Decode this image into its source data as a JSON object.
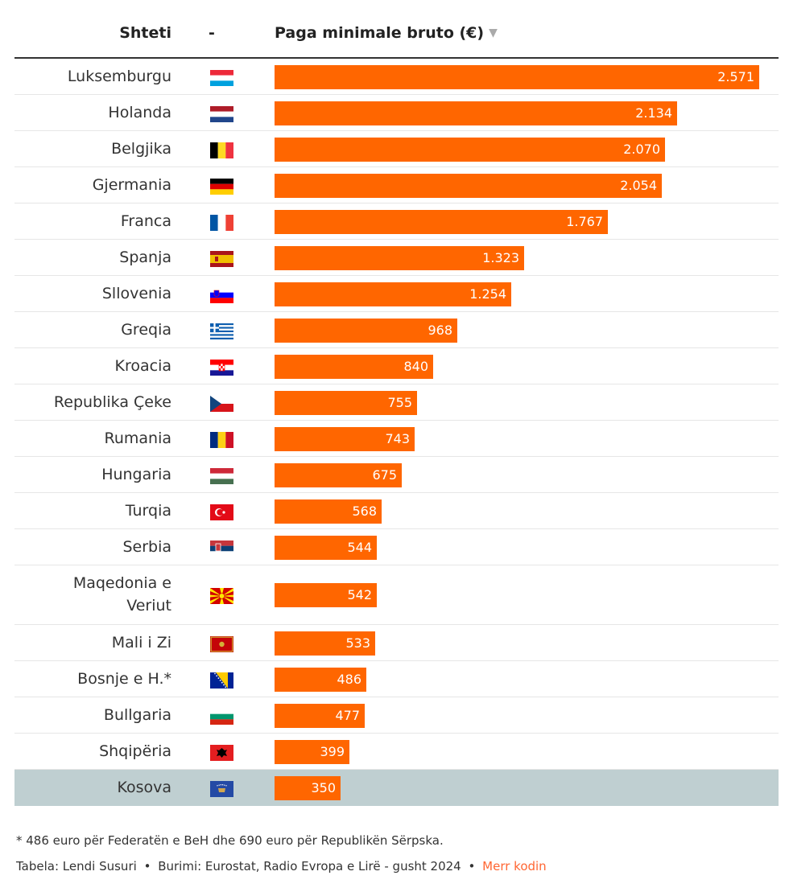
{
  "header": {
    "country_label": "Shteti",
    "flag_label": "-",
    "value_label": "Paga minimale bruto (€)",
    "sort_icon": "sort-down-triangle-icon"
  },
  "chart_data": {
    "type": "bar",
    "orientation": "horizontal",
    "title": "",
    "xlabel": "",
    "ylabel": "",
    "value_column": "Paga minimale bruto (€)",
    "bar_color": "#ff6600",
    "highlight_color": "#bfcfd1",
    "xlim": [
      0,
      2571
    ],
    "rows": [
      {
        "country": "Luksemburgu",
        "flag": "luxembourg-flag-icon",
        "value": 2571,
        "label": "2.571"
      },
      {
        "country": "Holanda",
        "flag": "netherlands-flag-icon",
        "value": 2134,
        "label": "2.134"
      },
      {
        "country": "Belgjika",
        "flag": "belgium-flag-icon",
        "value": 2070,
        "label": "2.070"
      },
      {
        "country": "Gjermania",
        "flag": "germany-flag-icon",
        "value": 2054,
        "label": "2.054"
      },
      {
        "country": "Franca",
        "flag": "france-flag-icon",
        "value": 1767,
        "label": "1.767"
      },
      {
        "country": "Spanja",
        "flag": "spain-flag-icon",
        "value": 1323,
        "label": "1.323"
      },
      {
        "country": "Sllovenia",
        "flag": "slovenia-flag-icon",
        "value": 1254,
        "label": "1.254"
      },
      {
        "country": "Greqia",
        "flag": "greece-flag-icon",
        "value": 968,
        "label": "968"
      },
      {
        "country": "Kroacia",
        "flag": "croatia-flag-icon",
        "value": 840,
        "label": "840"
      },
      {
        "country": "Republika Çeke",
        "flag": "czech-republic-flag-icon",
        "value": 755,
        "label": "755"
      },
      {
        "country": "Rumania",
        "flag": "romania-flag-icon",
        "value": 743,
        "label": "743"
      },
      {
        "country": "Hungaria",
        "flag": "hungary-flag-icon",
        "value": 675,
        "label": "675"
      },
      {
        "country": "Turqia",
        "flag": "turkey-flag-icon",
        "value": 568,
        "label": "568"
      },
      {
        "country": "Serbia",
        "flag": "serbia-flag-icon",
        "value": 544,
        "label": "544"
      },
      {
        "country": "Maqedonia e Veriut",
        "flag": "north-macedonia-flag-icon",
        "value": 542,
        "label": "542"
      },
      {
        "country": "Mali i Zi",
        "flag": "montenegro-flag-icon",
        "value": 533,
        "label": "533"
      },
      {
        "country": "Bosnje e H.*",
        "flag": "bosnia-flag-icon",
        "value": 486,
        "label": "486"
      },
      {
        "country": "Bullgaria",
        "flag": "bulgaria-flag-icon",
        "value": 477,
        "label": "477"
      },
      {
        "country": "Shqipëria",
        "flag": "albania-flag-icon",
        "value": 399,
        "label": "399"
      },
      {
        "country": "Kosova",
        "flag": "kosovo-flag-icon",
        "value": 350,
        "label": "350",
        "highlight": true
      }
    ]
  },
  "footer": {
    "footnote": "* 486 euro për Federatën e BeH dhe 690 euro për Republikën Sërpska.",
    "credit_table": "Tabela: Lendi Susuri",
    "separator": "•",
    "credit_source": "Burimi: Eurostat, Radio Evropa e Lirë - gusht 2024",
    "link_label": "Merr kodin"
  }
}
